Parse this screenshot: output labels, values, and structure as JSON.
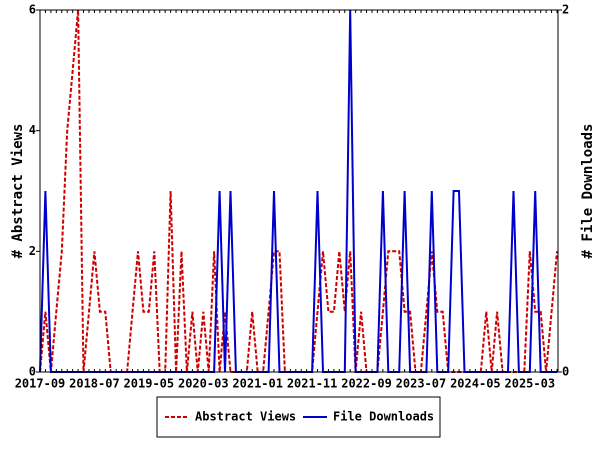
{
  "chart_data": {
    "type": "line",
    "categories": [
      "2017-09",
      null,
      null,
      null,
      null,
      null,
      null,
      null,
      null,
      null,
      "2018-07",
      null,
      null,
      null,
      null,
      null,
      null,
      null,
      null,
      null,
      "2019-05",
      null,
      null,
      null,
      null,
      null,
      null,
      null,
      null,
      null,
      "2020-03",
      null,
      null,
      null,
      null,
      null,
      null,
      null,
      null,
      null,
      "2021-01",
      null,
      null,
      null,
      null,
      null,
      null,
      null,
      null,
      null,
      "2021-11",
      null,
      null,
      null,
      null,
      null,
      null,
      null,
      null,
      null,
      "2022-09",
      null,
      null,
      null,
      null,
      null,
      null,
      null,
      null,
      null,
      "2023-07",
      null,
      null,
      null,
      null,
      null,
      null,
      null,
      null,
      null,
      "2024-05",
      null,
      null,
      null,
      null,
      null,
      null,
      null,
      null,
      null,
      "2025-03",
      null,
      null,
      null,
      null,
      null
    ],
    "y_label": "# Abstract Views",
    "y2_label": "# File Downloads",
    "ylim": [
      0,
      6
    ],
    "yticks": [
      0,
      2,
      4,
      6
    ],
    "y2lim": [
      0,
      2
    ],
    "y2ticks": [
      0,
      2
    ],
    "legend": "bottom",
    "series": [
      {
        "name": "Abstract Views",
        "color": "#cc0000",
        "dashed": true,
        "values": [
          0,
          1,
          0,
          1,
          2,
          4,
          5,
          6,
          0,
          1,
          2,
          1,
          1,
          0,
          0,
          0,
          0,
          1,
          2,
          1,
          1,
          2,
          0,
          0,
          3,
          0,
          2,
          0,
          1,
          0,
          1,
          0,
          2,
          0,
          1,
          0,
          0,
          0,
          0,
          1,
          0,
          0,
          1,
          2,
          2,
          0,
          0,
          0,
          0,
          0,
          0,
          1,
          2,
          1,
          1,
          2,
          1,
          2,
          0,
          1,
          0,
          0,
          0,
          1,
          2,
          2,
          2,
          1,
          1,
          0,
          0,
          1,
          2,
          1,
          1,
          0,
          0,
          0,
          0,
          0,
          0,
          0,
          1,
          0,
          1,
          0,
          0,
          0,
          0,
          0,
          2,
          1,
          1,
          0,
          1,
          2
        ]
      },
      {
        "name": "File Downloads",
        "color": "#0000cc",
        "axis": "y2",
        "values": [
          0,
          1,
          0,
          0,
          0,
          0,
          0,
          0,
          0,
          0,
          0,
          0,
          0,
          0,
          0,
          0,
          0,
          0,
          0,
          0,
          0,
          0,
          0,
          0,
          0,
          0,
          0,
          0,
          0,
          0,
          0,
          0,
          0,
          1,
          0,
          1,
          0,
          0,
          0,
          0,
          0,
          0,
          0,
          1,
          0,
          0,
          0,
          0,
          0,
          0,
          0,
          1,
          0,
          0,
          0,
          0,
          0,
          2,
          0,
          0,
          0,
          0,
          0,
          1,
          0,
          0,
          0,
          1,
          0,
          0,
          0,
          0,
          1,
          0,
          0,
          0,
          1,
          1,
          0,
          0,
          0,
          0,
          0,
          0,
          0,
          0,
          0,
          1,
          0,
          0,
          0,
          1,
          0,
          0,
          0,
          0
        ]
      }
    ]
  }
}
